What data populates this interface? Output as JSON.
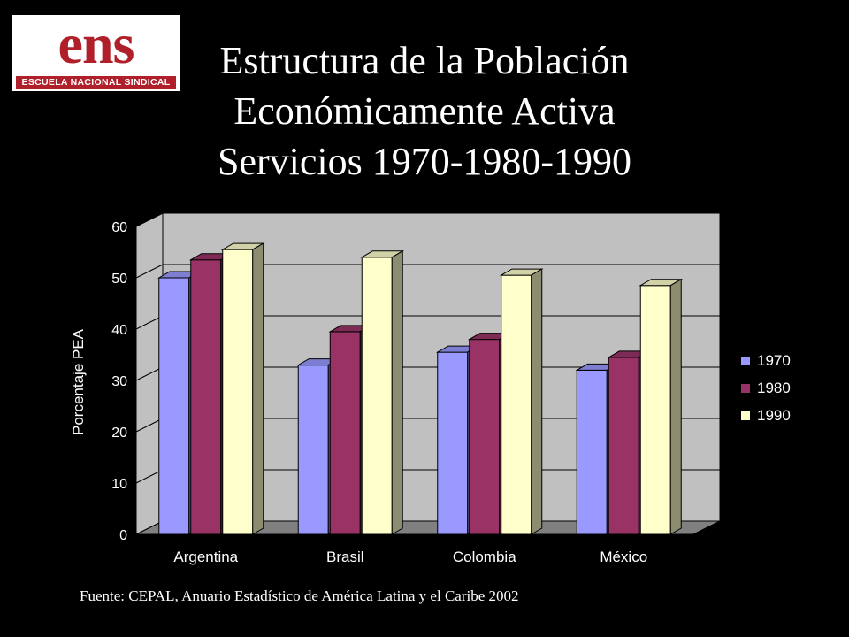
{
  "logo": {
    "mark_text": "ens",
    "band_text": "ESCUELA NACIONAL SINDICAL"
  },
  "title_lines": [
    "Estructura de la Población",
    "Económicamente Activa",
    "Servicios 1970-1980-1990"
  ],
  "source": "Fuente: CEPAL, Anuario Estadístico de América Latina y el Caribe 2002",
  "chart_data": {
    "type": "bar",
    "categories": [
      "Argentina",
      "Brasil",
      "Colombia",
      "México"
    ],
    "series": [
      {
        "name": "1970",
        "values": [
          50,
          33,
          35.5,
          32
        ],
        "color": "#9999ff"
      },
      {
        "name": "1980",
        "values": [
          53.5,
          39.5,
          38,
          34.5
        ],
        "color": "#993366"
      },
      {
        "name": "1990",
        "values": [
          55.5,
          54,
          50.5,
          48.5
        ],
        "color": "#ffffcc"
      }
    ],
    "ylabel": "Porcentaje PEA",
    "xlabel": "",
    "ylim": [
      0,
      60
    ],
    "yticks": [
      "0",
      "10",
      "20",
      "30",
      "40",
      "50",
      "60"
    ],
    "grid": true,
    "legend": "right",
    "plot_background": "#c0c0c0",
    "floor_color": "#808080"
  }
}
